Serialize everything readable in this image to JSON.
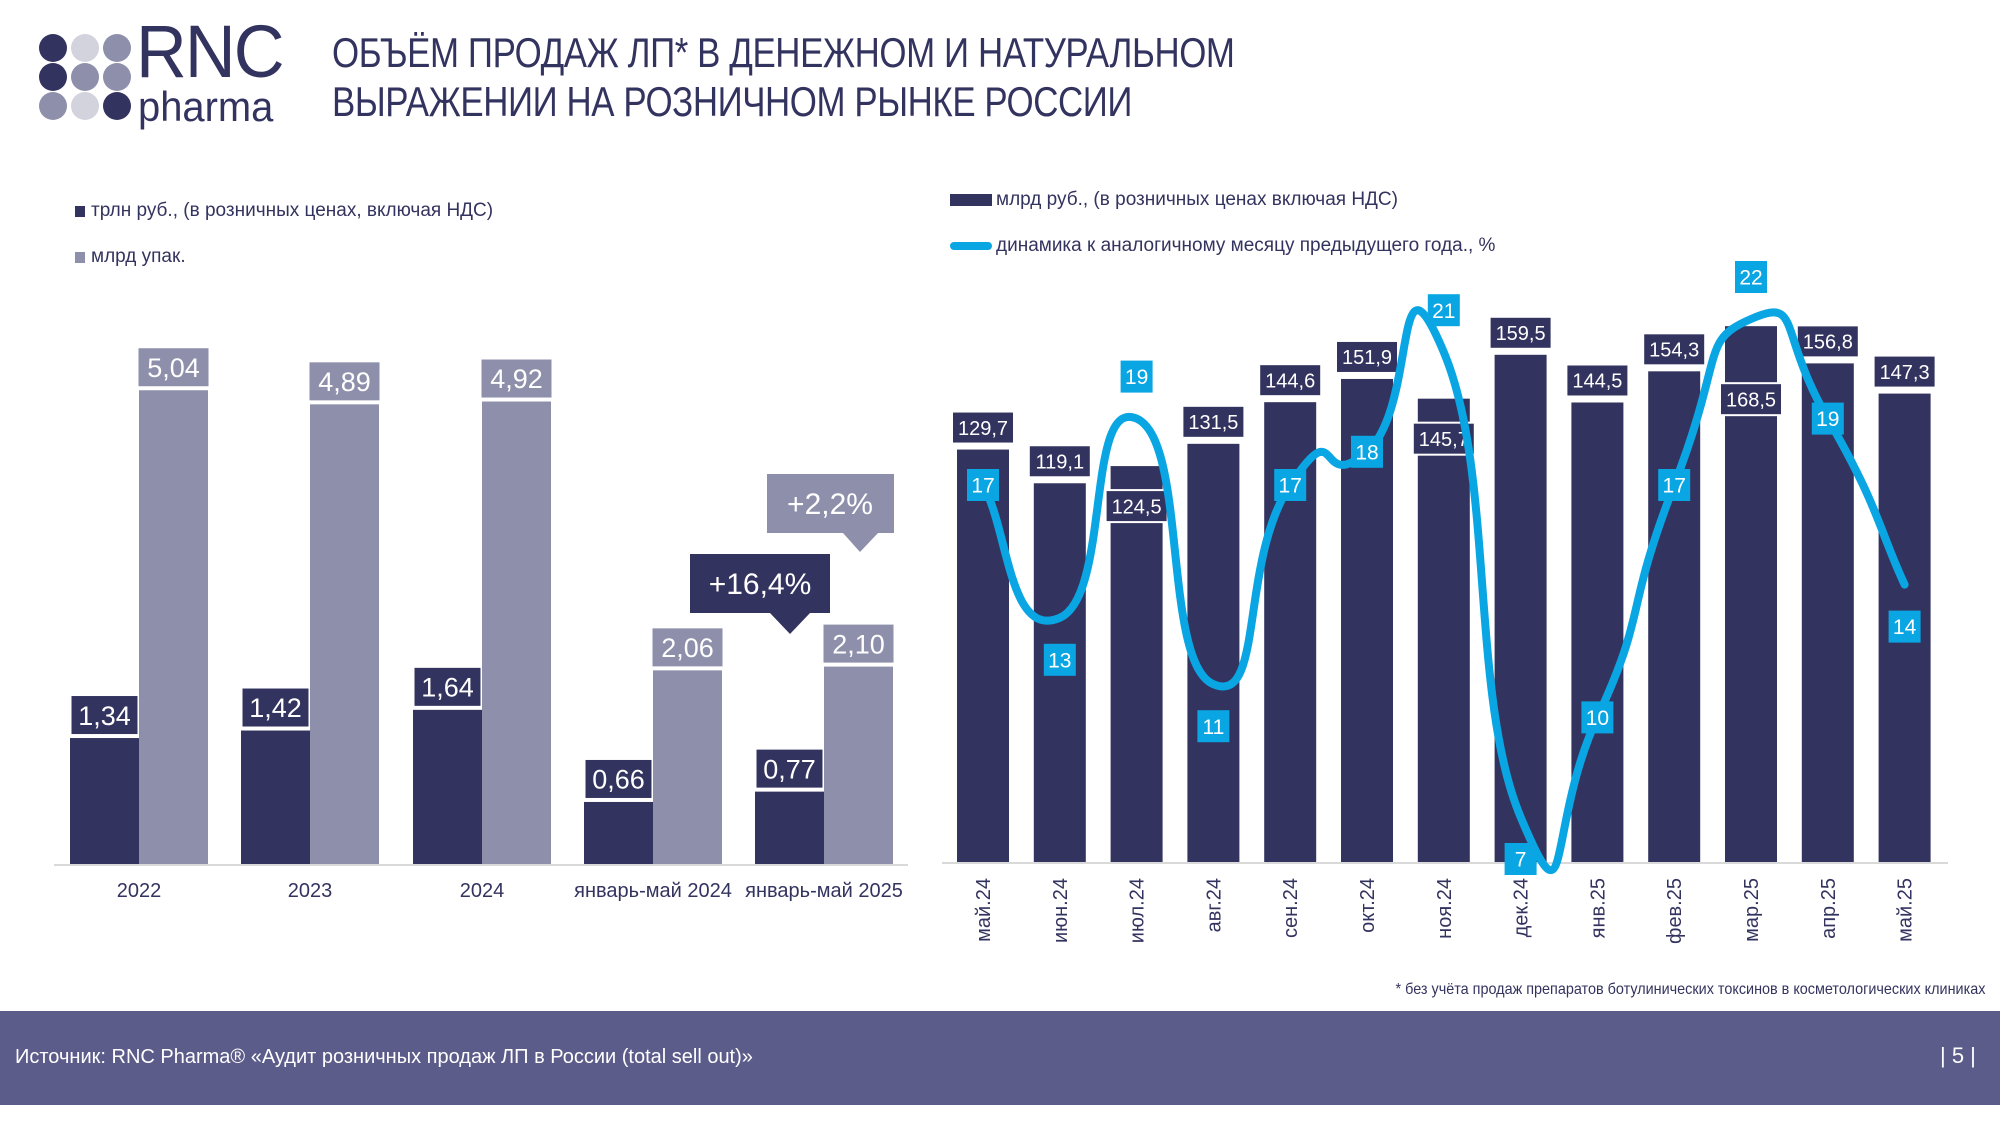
{
  "logo": {
    "text_main": "RNC",
    "text_sub": "pharma"
  },
  "header": {
    "title_line1": "ОБЪЁМ ПРОДАЖ ЛП* В ДЕНЕЖНОМ И НАТУРАЛЬНОМ",
    "title_line2": "ВЫРАЖЕНИИ НА РОЗНИЧНОМ РЫНКЕ РОССИИ"
  },
  "colors": {
    "navy": "#33335f",
    "gray": "#8e8fab",
    "blue": "#09a6e3",
    "footer": "#5c5c8a"
  },
  "chart_data": [
    {
      "type": "bar",
      "categories": [
        "2022",
        "2023",
        "2024",
        "январь-май 2024",
        "январь-май 2025"
      ],
      "series": [
        {
          "name": "трлн руб., (в розничных ценах, включая НДС)",
          "values": [
            1.34,
            1.42,
            1.64,
            0.66,
            0.77
          ],
          "labels": [
            "1,34",
            "1,42",
            "1,64",
            "0,66",
            "0,77"
          ],
          "color": "#33335f"
        },
        {
          "name": "млрд упак.",
          "values": [
            5.04,
            4.89,
            4.92,
            2.06,
            2.1
          ],
          "labels": [
            "5,04",
            "4,89",
            "4,92",
            "2,06",
            "2,10"
          ],
          "color": "#8e8fab"
        }
      ],
      "annotations": [
        {
          "text": "+16,4%",
          "series": "трлн руб., (в розничных ценах, включая НДС)"
        },
        {
          "text": "+2,2%",
          "series": "млрд упак."
        }
      ],
      "legend": "top-left",
      "grid": false
    },
    {
      "type": "bar+line",
      "categories": [
        "май.24",
        "июн.24",
        "июл.24",
        "авг.24",
        "сен.24",
        "окт.24",
        "ноя.24",
        "дек.24",
        "янв.25",
        "фев.25",
        "мар.25",
        "апр.25",
        "май.25"
      ],
      "series": [
        {
          "name": "млрд руб., (в розничных ценах включая НДС)",
          "type": "bar",
          "values": [
            129.7,
            119.1,
            124.5,
            131.5,
            144.6,
            151.9,
            145.7,
            159.5,
            144.5,
            154.3,
            168.5,
            156.8,
            147.3
          ],
          "labels": [
            "129,7",
            "119,1",
            "124,5",
            "131,5",
            "144,6",
            "151,9",
            "145,7",
            "159,5",
            "144,5",
            "154,3",
            "168,5",
            "156,8",
            "147,3"
          ],
          "color": "#33335f"
        },
        {
          "name": "динамика к аналогичному месяцу предыдущего года., %",
          "type": "line",
          "smooth": true,
          "values": [
            17,
            13,
            19,
            11,
            17,
            18,
            21,
            7,
            10,
            17,
            22,
            19,
            14
          ],
          "color": "#09a6e3"
        }
      ],
      "legend": "top-left",
      "grid": false
    }
  ],
  "footnote": "* без учёта продаж препаратов ботулинических токсинов в косметологических клиниках",
  "footer": {
    "source": "Источник: RNC Pharma® «Аудит розничных продаж ЛП в России (total sell out)»",
    "page": "| 5 |"
  }
}
